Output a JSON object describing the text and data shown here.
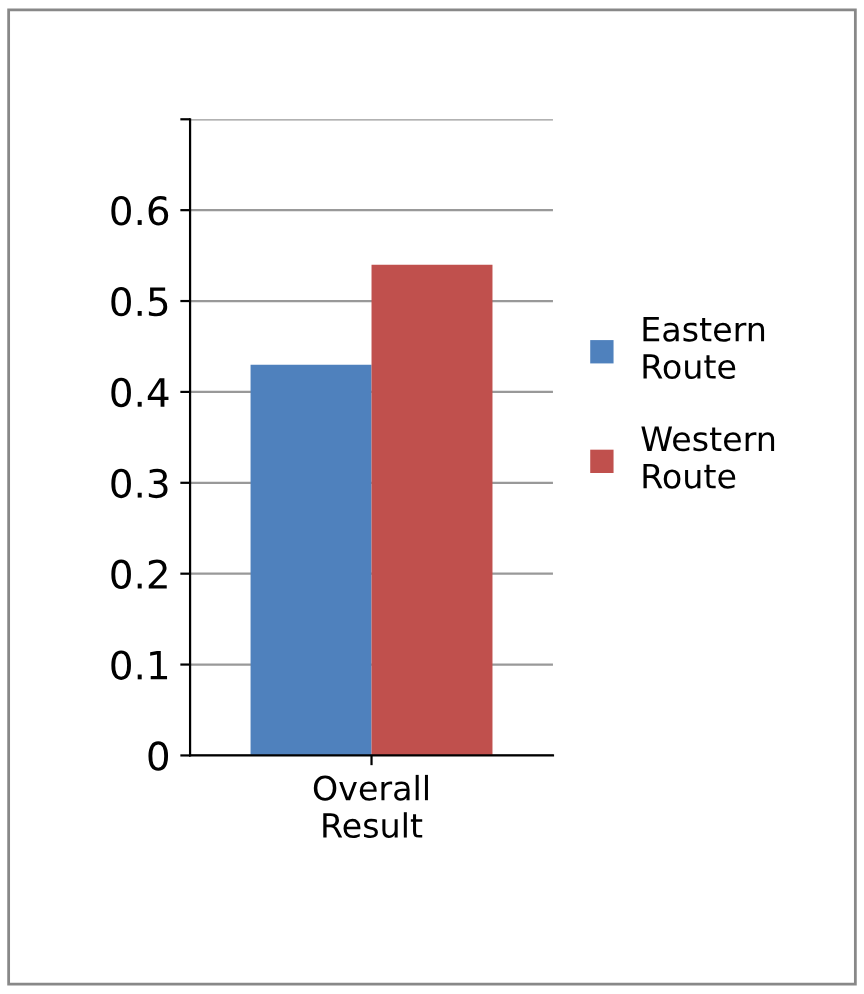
{
  "chart_data": {
    "type": "bar",
    "categories": [
      "Overall\nResult"
    ],
    "series": [
      {
        "name": "Eastern\nRoute",
        "color": "#4f81bd",
        "values": [
          0.43
        ]
      },
      {
        "name": "Western\nRoute",
        "color": "#c0504d",
        "values": [
          0.54
        ]
      }
    ],
    "ylim": [
      0,
      0.7
    ],
    "yticks": [
      0,
      0.1,
      0.2,
      0.3,
      0.4,
      0.5,
      0.6,
      {
        "value": 0.7,
        "label": null
      }
    ],
    "grid": "y",
    "legend": "right"
  }
}
